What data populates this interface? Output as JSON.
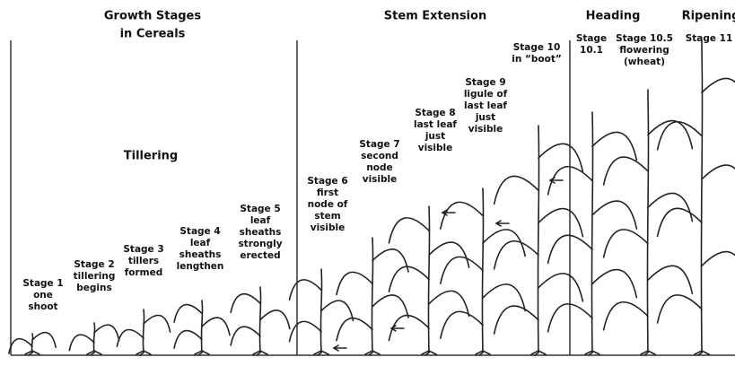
{
  "title": [
    "Growth Stages",
    "in Cereals"
  ],
  "sections": [
    "Tillering",
    "Stem Extension",
    "Heading",
    "Ripening"
  ],
  "stages": [
    {
      "lines": [
        "Stage 1",
        "one",
        "shoot"
      ]
    },
    {
      "lines": [
        "Stage 2",
        "tillering",
        "begins"
      ]
    },
    {
      "lines": [
        "Stage 3",
        "tillers",
        "formed"
      ]
    },
    {
      "lines": [
        "Stage 4",
        "leaf",
        "sheaths",
        "lengthen"
      ]
    },
    {
      "lines": [
        "Stage 5",
        "leaf",
        "sheaths",
        "strongly",
        "erected"
      ]
    },
    {
      "lines": [
        "Stage 6",
        "first",
        "node of",
        "stem",
        "visible"
      ]
    },
    {
      "lines": [
        "Stage 7",
        "second",
        "node",
        "visible"
      ]
    },
    {
      "lines": [
        "Stage 8",
        "last leaf",
        "just",
        "visible"
      ]
    },
    {
      "lines": [
        "Stage 9",
        "ligule of",
        "last leaf",
        "just",
        "visible"
      ]
    },
    {
      "lines": [
        "Stage 10",
        "in “boot”"
      ]
    },
    {
      "lines": [
        "Stage",
        "10.1"
      ]
    },
    {
      "lines": [
        "Stage 10.5",
        "flowering",
        "(wheat)"
      ]
    },
    {
      "lines": [
        "Stage 11"
      ]
    }
  ]
}
